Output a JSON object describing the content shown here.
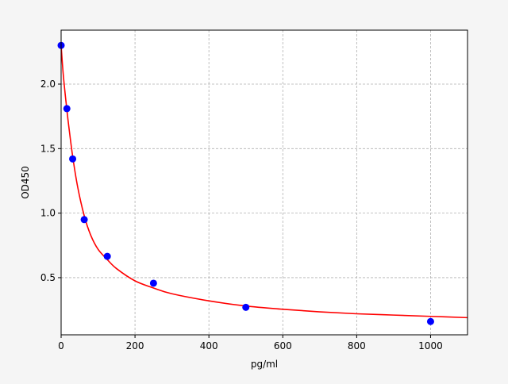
{
  "chart_data": {
    "type": "scatter",
    "title": "",
    "xlabel": "pg/ml",
    "ylabel": "OD450",
    "xlim": [
      0,
      1100
    ],
    "ylim": [
      0.057,
      2.418
    ],
    "xticks": [
      0,
      200,
      400,
      600,
      800,
      1000
    ],
    "xtick_labels": [
      "0",
      "200",
      "400",
      "600",
      "800",
      "1000"
    ],
    "yticks": [
      0.5,
      1.0,
      1.5,
      2.0
    ],
    "ytick_labels": [
      "0.5",
      "1.0",
      "1.5",
      "2.0"
    ],
    "grid": true,
    "points": {
      "color": "#0000ff",
      "x": [
        0,
        15.6,
        31.25,
        62.5,
        125,
        250,
        500,
        1000
      ],
      "y": [
        2.3,
        1.81,
        1.42,
        0.95,
        0.665,
        0.457,
        0.27,
        0.16
      ]
    },
    "fit_curve": {
      "color": "#ff0000",
      "x": [
        0,
        5,
        10,
        15.6,
        20,
        31.25,
        45,
        62.5,
        80,
        100,
        125,
        150,
        200,
        250,
        300,
        400,
        500,
        600,
        700,
        800,
        900,
        1000,
        1100
      ],
      "y": [
        2.3,
        2.1,
        1.95,
        1.8,
        1.69,
        1.44,
        1.2,
        0.98,
        0.83,
        0.72,
        0.64,
        0.57,
        0.475,
        0.42,
        0.375,
        0.32,
        0.28,
        0.255,
        0.235,
        0.22,
        0.21,
        0.2,
        0.19
      ]
    }
  }
}
